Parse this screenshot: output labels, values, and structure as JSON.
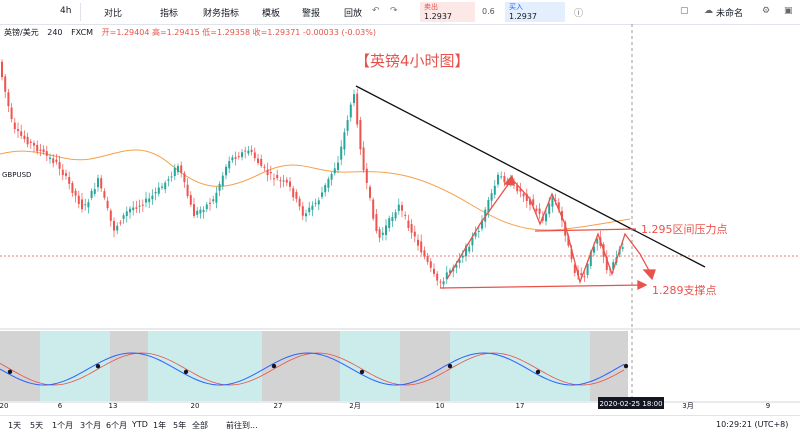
{
  "toolbar": {
    "interval": "4h",
    "items": [
      "对比",
      "指标",
      "财务指标",
      "模板",
      "警报",
      "回放"
    ],
    "sell": {
      "label": "卖出",
      "price": "1.2937"
    },
    "spread": "0.6",
    "buy": {
      "label": "买入",
      "price": "1.2937"
    },
    "layout_name": "未命名"
  },
  "legend": {
    "symbol": "英镑/美元",
    "interval": "240",
    "source": "FXCM",
    "ohlc": "开=1.29404 高=1.29415 低=1.29358 收=1.29371 -0.00033 (-0.03%)"
  },
  "symbol_tag": "GBPUSD",
  "annotations": {
    "title": "【英镑4小时图】",
    "resistance": "1.295区间压力点",
    "support": "1.289支撑点"
  },
  "time_axis": {
    "labels": [
      "20",
      "6",
      "13",
      "20",
      "27",
      "2月",
      "10",
      "17",
      "3月",
      "9"
    ],
    "cursor": "2020-02-25   18:00"
  },
  "bottom_bar": {
    "ranges": [
      "1天",
      "5天",
      "1个月",
      "3个月",
      "6个月",
      "YTD",
      "1年",
      "5年",
      "全部"
    ],
    "goto": "前往到...",
    "clock": "10:29:21 (UTC+8)"
  }
}
